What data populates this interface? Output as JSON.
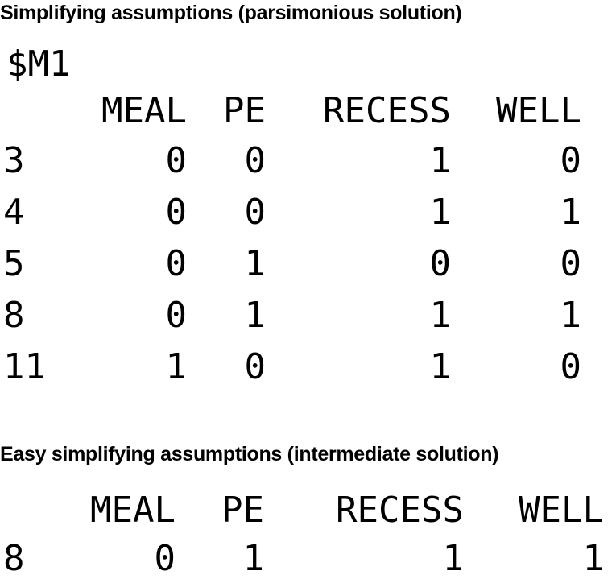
{
  "parsimonious": {
    "heading": "Simplifying assumptions (parsimonious solution)",
    "list_name": "$M1",
    "columns": [
      "MEAL",
      "PE",
      "RECESS",
      "WELL"
    ],
    "rows": [
      {
        "label": "3",
        "values": [
          "0",
          "0",
          "1",
          "0"
        ]
      },
      {
        "label": "4",
        "values": [
          "0",
          "0",
          "1",
          "1"
        ]
      },
      {
        "label": "5",
        "values": [
          "0",
          "1",
          "0",
          "0"
        ]
      },
      {
        "label": "8",
        "values": [
          "0",
          "1",
          "1",
          "1"
        ]
      },
      {
        "label": "11",
        "values": [
          "1",
          "0",
          "1",
          "0"
        ]
      }
    ]
  },
  "intermediate": {
    "heading": "Easy simplifying assumptions (intermediate solution)",
    "columns": [
      "MEAL",
      "PE",
      "RECESS",
      "WELL"
    ],
    "rows": [
      {
        "label": "8",
        "values": [
          "0",
          "1",
          "1",
          "1"
        ]
      }
    ]
  }
}
